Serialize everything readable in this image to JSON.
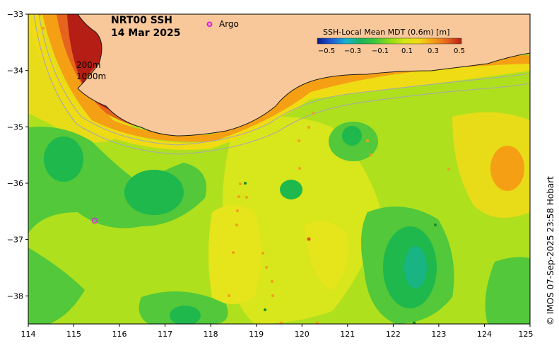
{
  "title": {
    "product": "NRT00 SSH",
    "date": "14 Mar 2025"
  },
  "legend": {
    "argo_symbol": "o",
    "argo_label": "Argo"
  },
  "isobaths": [
    "200m",
    "1000m"
  ],
  "colorbar": {
    "title": "SSH-Local Mean MDT (0.6m) [m]",
    "ticks": [
      "−0.5",
      "−0.3",
      "−0.1",
      "0.1",
      "0.3",
      "0.5"
    ],
    "colors": [
      "#0a1a8c",
      "#1e5bd6",
      "#14b4d2",
      "#19b45a",
      "#3cc83c",
      "#8cdc14",
      "#d2e614",
      "#f0dc14",
      "#f5a014",
      "#e6641e",
      "#b41e14"
    ]
  },
  "axes": {
    "x_ticks": [
      "114",
      "115",
      "116",
      "117",
      "118",
      "119",
      "120",
      "121",
      "122",
      "123",
      "124",
      "125"
    ],
    "y_ticks": [
      "−33",
      "−34",
      "−35",
      "−36",
      "−37",
      "−38"
    ]
  },
  "credit": "© IMOS 07-Sep-2025 23:58 Hobart",
  "colors": {
    "land": "#f8c89a",
    "ocean_base": "#aee01e",
    "argo": "#e020e0"
  }
}
